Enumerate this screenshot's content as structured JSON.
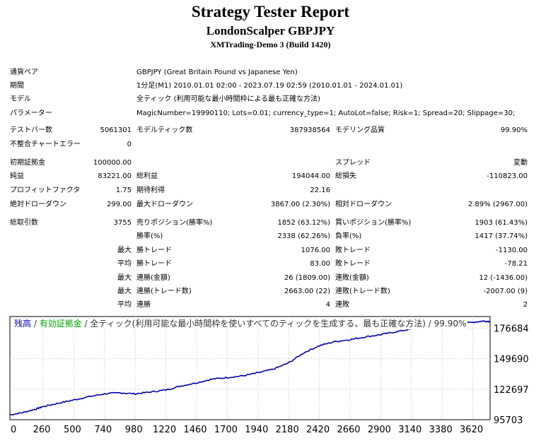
{
  "header": {
    "title": "Strategy Tester Report",
    "subtitle": "LondonScalper GBPJPY",
    "build": "XMTrading-Demo 3 (Build 1420)"
  },
  "info": {
    "symbol_label": "通貨ペア",
    "symbol_value": "GBPJPY (Great Britain Pound vs Japanese Yen)",
    "period_label": "期間",
    "period_value": "1分足(M1) 2010.01.01 02:00 - 2023.07.19 02:59 (2010.01.01 - 2024.01.01)",
    "model_label": "モデル",
    "model_value": "全ティック (利用可能な最小時間枠による最も正確な方法)",
    "params_label": "パラメーター",
    "params_value": "MagicNumber=19990110; Lots=0.01; currency_type=1; AutoLot=false; Risk=1; Spread=20; Slippage=30;"
  },
  "stats": {
    "bars_label": "テストバー数",
    "bars_value": "5061301",
    "ticks_label": "モデルティック数",
    "ticks_value": "387938564",
    "quality_label": "モデリング品質",
    "quality_value": "99.90%",
    "mismatch_label": "不整合チャートエラー",
    "mismatch_value": "0",
    "deposit_label": "初期証拠金",
    "deposit_value": "100000.00",
    "spread_label": "スプレッド",
    "spread_value": "変動",
    "net_label": "純益",
    "net_value": "83221.00",
    "gross_profit_label": "総利益",
    "gross_profit_value": "194044.00",
    "gross_loss_label": "総損失",
    "gross_loss_value": "-110823.00",
    "pf_label": "プロフィットファクタ",
    "pf_value": "1.75",
    "expected_label": "期待利得",
    "expected_value": "22.16",
    "abs_dd_label": "絶対ドローダウン",
    "abs_dd_value": "299.00",
    "max_dd_label": "最大ドローダウン",
    "max_dd_value": "3867.00 (2.30%)",
    "rel_dd_label": "相対ドローダウン",
    "rel_dd_value": "2.89% (2967.00)",
    "trades_label": "総取引数",
    "trades_value": "3755",
    "short_label": "売りポジション(勝率%)",
    "short_value": "1852 (63.12%)",
    "long_label": "買いポジション(勝率%)",
    "long_value": "1903 (61.43%)",
    "win_label": "勝率(%)",
    "win_value": "2338 (62.26%)",
    "loss_label": "負率(%)",
    "loss_value": "1417 (37.74%)",
    "largest_label": "最大",
    "largest_win_label": "勝トレード",
    "largest_win_value": "1076.00",
    "largest_loss_label": "敗トレード",
    "largest_loss_value": "-1130.00",
    "average_label": "平均",
    "average_win_label": "勝トレード",
    "average_win_value": "83.00",
    "average_loss_label": "敗トレード",
    "average_loss_value": "-78.21",
    "max_label": "最大",
    "cons_wins_label": "連勝(金額)",
    "cons_wins_value": "26 (1809.00)",
    "cons_losses_label": "連敗(金額)",
    "cons_losses_value": "12 (-1436.00)",
    "max2_label": "最大",
    "cons_profit_label": "連勝(トレード数)",
    "cons_profit_value": "2663.00 (22)",
    "cons_loss_label": "連敗(トレード数)",
    "cons_loss_value": "-2007.00 (9)",
    "avg2_label": "平均",
    "avg_cons_wins_label": "連勝",
    "avg_cons_wins_value": "4",
    "avg_cons_losses_label": "連敗",
    "avg_cons_losses_value": "2"
  },
  "chart_caption": {
    "balance": "残高",
    "sep1": " / ",
    "equity": "有効証拠金",
    "sep2": " / ",
    "model": "全ティック(利用可能な最小時間枠を使いすべてのティックを生成する、最も正確な方法)",
    "sep3": " / ",
    "quality": "99.90%"
  },
  "colors": {
    "balance": "#0000b0",
    "equity": "#00aa00",
    "grid": "#c8c8c8"
  },
  "chart_data": {
    "type": "line",
    "series": [
      {
        "name": "残高",
        "x": [
          0,
          100,
          200,
          260,
          380,
          500,
          620,
          740,
          860,
          980,
          1100,
          1220,
          1340,
          1460,
          1580,
          1700,
          1820,
          1940,
          2060,
          2180,
          2300,
          2420,
          2540,
          2660,
          2780,
          2900,
          3020,
          3140,
          3260,
          3380,
          3500,
          3620,
          3700,
          3755
        ],
        "y": [
          100000,
          102000,
          105000,
          107300,
          110300,
          113200,
          116100,
          118600,
          119500,
          118600,
          120200,
          122000,
          125600,
          128400,
          131600,
          133000,
          134500,
          137200,
          140400,
          146000,
          155000,
          161200,
          164800,
          166600,
          169000,
          171000,
          173500,
          176000,
          178000,
          179300,
          180500,
          181900,
          183000,
          182600
        ]
      }
    ],
    "xticks": [
      "0",
      "260",
      "500",
      "740",
      "980",
      "1220",
      "1460",
      "1700",
      "1940",
      "2180",
      "2420",
      "2660",
      "2900",
      "3140",
      "3380",
      "3620"
    ],
    "yticks": [
      "95703",
      "122697",
      "149690",
      "176684"
    ],
    "xlim": [
      0,
      3755
    ],
    "ylim": [
      95703,
      187000
    ],
    "grid": true
  }
}
